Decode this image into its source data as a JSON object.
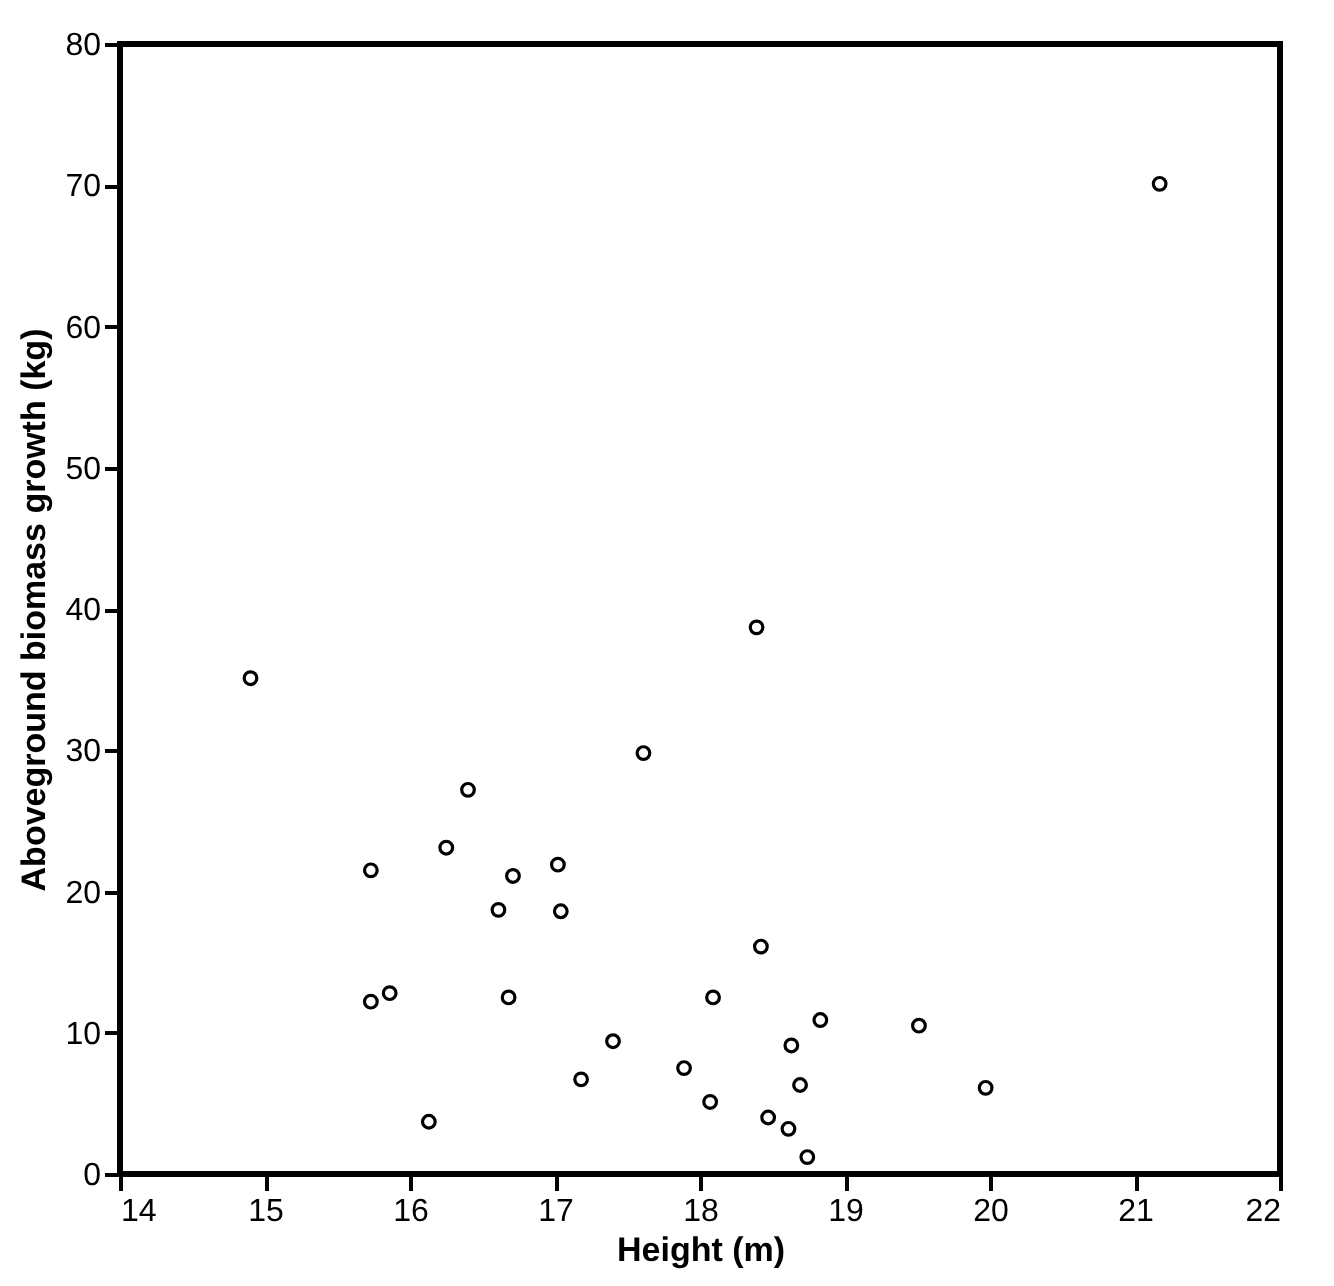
{
  "chart_data": {
    "type": "scatter",
    "xlabel": "Height (m)",
    "ylabel": "Aboveground biomass growth (kg)",
    "x": [
      14.9,
      17.61,
      16.4,
      16.25,
      15.73,
      17.02,
      16.71,
      16.61,
      17.04,
      15.86,
      15.73,
      16.68,
      18.09,
      17.4,
      17.18,
      17.89,
      18.07,
      16.13,
      18.39,
      18.42,
      18.83,
      19.51,
      18.63,
      18.69,
      19.97,
      18.47,
      18.61,
      18.74,
      21.17
    ],
    "values": [
      35.1,
      29.8,
      27.2,
      23.1,
      21.5,
      21.9,
      21.1,
      18.7,
      18.6,
      12.8,
      12.2,
      12.5,
      12.5,
      9.4,
      6.7,
      7.5,
      5.1,
      3.7,
      38.7,
      16.1,
      10.9,
      10.5,
      9.1,
      6.3,
      6.1,
      4.0,
      3.2,
      1.2,
      70.1
    ],
    "color": "#000000",
    "marker": "circle",
    "grid": false,
    "xlim": [
      14,
      22
    ],
    "xticks": [
      14,
      15,
      16,
      17,
      18,
      19,
      20,
      21,
      22
    ],
    "ylim": [
      0,
      80
    ],
    "yticks": [
      0,
      10,
      20,
      30,
      40,
      50,
      60,
      70,
      80
    ]
  }
}
